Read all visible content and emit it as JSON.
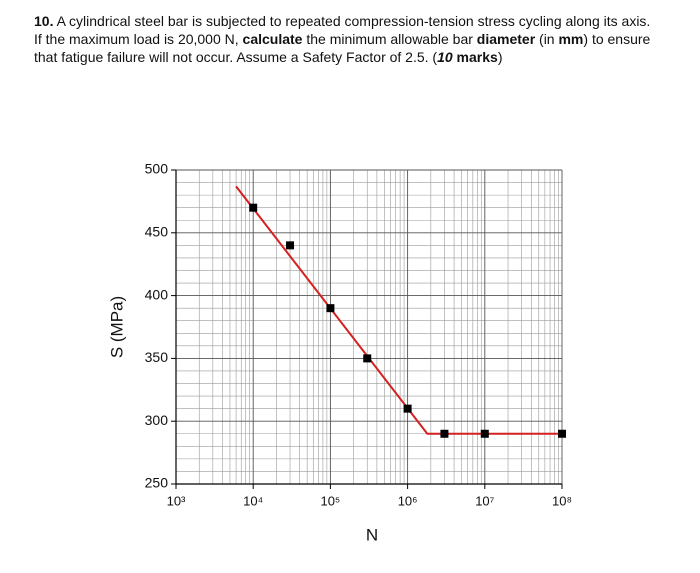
{
  "question": {
    "lines": [
      [
        {
          "text": "10.",
          "style": "bold"
        },
        {
          "text": " A cylindrical steel bar is subjected to repeated compression-tension stress cycling along its axis.",
          "style": "normal"
        }
      ],
      [
        {
          "text": "If the maximum load is 20,000 N, ",
          "style": "normal"
        },
        {
          "text": "calculate",
          "style": "bold"
        },
        {
          "text": " the minimum allowable bar ",
          "style": "normal"
        },
        {
          "text": "diameter",
          "style": "bold"
        },
        {
          "text": " (in ",
          "style": "normal"
        },
        {
          "text": "mm",
          "style": "bold"
        },
        {
          "text": ") to ensure",
          "style": "normal"
        }
      ],
      [
        {
          "text": "that fatigue failure will not occur. Assume a Safety Factor of 2.5. (",
          "style": "normal"
        },
        {
          "text": "10",
          "style": "bolditalic"
        },
        {
          "text": " marks",
          "style": "bold"
        },
        {
          "text": ")",
          "style": "normal"
        }
      ]
    ]
  },
  "chart_data": {
    "type": "scatter",
    "x_label": "N",
    "y_label": "S (MPa)",
    "xlog": true,
    "grid": true,
    "xlim": [
      1000,
      100000000
    ],
    "xticks": [
      {
        "value": 1000,
        "label": "10³"
      },
      {
        "value": 10000,
        "label": "10⁴"
      },
      {
        "value": 100000,
        "label": "10⁵"
      },
      {
        "value": 1000000,
        "label": "10⁶"
      },
      {
        "value": 10000000,
        "label": "10⁷"
      },
      {
        "value": 100000000,
        "label": "10⁸"
      }
    ],
    "ylim": [
      250,
      500
    ],
    "yticks": [
      250,
      300,
      350,
      400,
      450,
      500
    ],
    "points": {
      "color": "#000000",
      "x": [
        10000,
        30000,
        100000,
        300000,
        1000000,
        3000000,
        10000000,
        100000000
      ],
      "y": [
        470,
        440,
        390,
        350,
        310,
        290,
        290,
        290
      ]
    },
    "fit_line": {
      "color": "#d42020",
      "x": [
        6000,
        1800000,
        100000000
      ],
      "y": [
        487,
        290,
        290
      ]
    }
  }
}
